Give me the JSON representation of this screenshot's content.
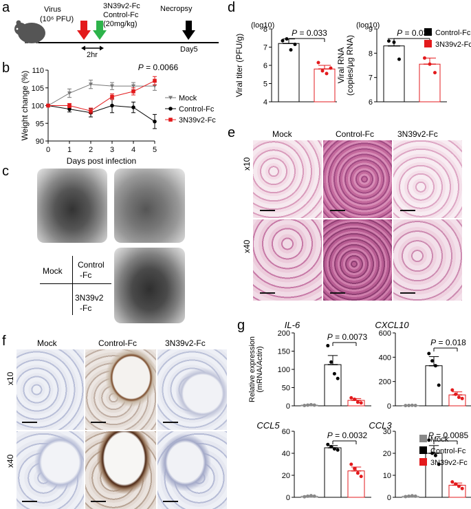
{
  "panel_labels": {
    "a": "a",
    "b": "b",
    "c": "c",
    "d": "d",
    "e": "e",
    "f": "f",
    "g": "g"
  },
  "panel_a": {
    "virus_label": "Virus",
    "virus_dose": "(10⁶ PFU)",
    "treatment_line1": "3N39v2-Fc",
    "treatment_line2": "Control-Fc",
    "treatment_line3": "(20mg/kg)",
    "interval": "2hr",
    "necropsy": "Necropsy",
    "day": "Day5",
    "colors": {
      "virus_arrow": "#e31a1c",
      "treatment_arrow": "#2db34a",
      "necropsy_arrow": "#000000"
    }
  },
  "panel_c": {
    "row_mock": "Mock",
    "col_control": "Control\n-Fc",
    "col_control_l1": "Control",
    "col_control_l2": "-Fc",
    "row_3n": "3N39v2",
    "row_3n_l2": "-Fc"
  },
  "panel_e": {
    "cols": [
      "Mock",
      "Control-Fc",
      "3N39v2-Fc"
    ],
    "rows": [
      "x10",
      "x40"
    ]
  },
  "panel_f": {
    "cols": [
      "Mock",
      "Control-Fc",
      "3N39v2-Fc"
    ],
    "rows": [
      "x10",
      "x40"
    ]
  },
  "chart_data": [
    {
      "id": "b",
      "type": "line",
      "xlabel": "Days post infection",
      "ylabel": "Weight change (%)",
      "xlim": [
        0,
        5
      ],
      "ylim": [
        90,
        110
      ],
      "xticks": [
        "0",
        "1",
        "2",
        "3",
        "4",
        "5"
      ],
      "yticks": [
        "90",
        "95",
        "100",
        "105",
        "110"
      ],
      "annotation": "P = 0.0066",
      "legend_position": "right",
      "x": [
        0,
        1,
        2,
        3,
        4,
        5
      ],
      "series": [
        {
          "name": "Mock",
          "color": "#777777",
          "marker": "triangle-down",
          "values": [
            100,
            103.5,
            106,
            105.5,
            105.5,
            105.5
          ],
          "errors": [
            0,
            1.2,
            1.2,
            1,
            1,
            1.2
          ]
        },
        {
          "name": "Control-Fc",
          "color": "#000000",
          "marker": "circle",
          "values": [
            100,
            99,
            98,
            100,
            99.5,
            95.5
          ],
          "errors": [
            0,
            0.8,
            1.2,
            2,
            1.5,
            2
          ]
        },
        {
          "name": "3N39v2-Fc",
          "color": "#e31a1c",
          "marker": "square",
          "values": [
            100,
            100,
            98.5,
            102.5,
            104,
            107
          ],
          "errors": [
            0,
            0.6,
            0.8,
            0.8,
            1,
            1.2
          ]
        }
      ]
    },
    {
      "id": "d1",
      "type": "bar",
      "ylabel": "Viral titer (PFU/g)",
      "scale_label": "(log10)",
      "ylim": [
        4,
        8
      ],
      "yticks": [
        "4",
        "5",
        "6",
        "7",
        "8"
      ],
      "annotation": "P = 0.033",
      "series": [
        {
          "name": "Control-Fc",
          "color": "#000000",
          "value": 7.2,
          "error": 0.25,
          "points": [
            7.35,
            7.45,
            6.85,
            7.15
          ]
        },
        {
          "name": "3N39v2-Fc",
          "color": "#e31a1c",
          "value": 5.8,
          "error": 0.2,
          "points": [
            6.15,
            5.7,
            5.55,
            5.85
          ]
        }
      ]
    },
    {
      "id": "d2",
      "type": "bar",
      "ylabel": "Viral RNA",
      "ylabel_line2": "(copies/μg RNA)",
      "scale_label": "(log10)",
      "ylim": [
        6,
        9
      ],
      "yticks": [
        "6",
        "7",
        "8",
        "9"
      ],
      "annotation": "P = 0.038",
      "legend": [
        "Control-Fc",
        "3N39v2-Fc"
      ],
      "series": [
        {
          "name": "Control-Fc",
          "color": "#000000",
          "value": 8.3,
          "error": 0.3,
          "points": [
            8.5,
            8.45,
            7.75
          ]
        },
        {
          "name": "3N39v2-Fc",
          "color": "#e31a1c",
          "value": 7.55,
          "error": 0.25,
          "points": [
            7.8,
            7.55,
            7.2
          ]
        }
      ]
    },
    {
      "id": "g_il6",
      "type": "bar",
      "title": "IL-6",
      "ylabel": "Relative expression",
      "ylabel_line2_pre": "(mRNA/",
      "ylabel_line2_ital": "Actin",
      "ylabel_line2_post": ")",
      "ylim": [
        0,
        200
      ],
      "yticks": [
        "0",
        "50",
        "100",
        "150",
        "200"
      ],
      "annotation": "P = 0.0073",
      "series": [
        {
          "name": "Mock",
          "color": "#888888",
          "value": 2,
          "error": 0.5,
          "points": [
            1,
            2,
            3,
            2
          ]
        },
        {
          "name": "Control-Fc",
          "color": "#000000",
          "value": 113,
          "error": 25,
          "points": [
            165,
            120,
            88,
            75
          ]
        },
        {
          "name": "3N39v2-Fc",
          "color": "#e31a1c",
          "value": 15,
          "error": 5,
          "points": [
            22,
            18,
            10,
            8
          ]
        }
      ]
    },
    {
      "id": "g_cxcl10",
      "type": "bar",
      "title": "CXCL10",
      "ylim": [
        0,
        600
      ],
      "yticks": [
        "0",
        "200",
        "400",
        "600"
      ],
      "annotation": "P = 0.018",
      "series": [
        {
          "name": "Mock",
          "color": "#888888",
          "value": 3,
          "error": 1,
          "points": [
            2,
            3,
            4,
            3
          ]
        },
        {
          "name": "Control-Fc",
          "color": "#000000",
          "value": 330,
          "error": 75,
          "points": [
            430,
            370,
            330,
            170
          ]
        },
        {
          "name": "3N39v2-Fc",
          "color": "#e31a1c",
          "value": 90,
          "error": 25,
          "points": [
            130,
            95,
            70,
            60
          ]
        }
      ]
    },
    {
      "id": "g_ccl5",
      "type": "bar",
      "title": "CCL5",
      "ylim": [
        0,
        60
      ],
      "yticks": [
        "0",
        "20",
        "40",
        "60"
      ],
      "annotation": "P = 0.0032",
      "series": [
        {
          "name": "Mock",
          "color": "#888888",
          "value": 1,
          "error": 0.4,
          "points": [
            0.5,
            1,
            1.5,
            1
          ]
        },
        {
          "name": "Control-Fc",
          "color": "#000000",
          "value": 45,
          "error": 2,
          "points": [
            48,
            46,
            44,
            43
          ]
        },
        {
          "name": "3N39v2-Fc",
          "color": "#e31a1c",
          "value": 24,
          "error": 3.5,
          "points": [
            30,
            26,
            22,
            19
          ]
        }
      ]
    },
    {
      "id": "g_ccl3",
      "type": "bar",
      "title": "CCL3",
      "ylim": [
        0,
        30
      ],
      "yticks": [
        "0",
        "10",
        "20",
        "30"
      ],
      "annotation": "P = 0.0085",
      "legend": [
        "Mock",
        "Control-Fc",
        "3N39v2-Fc"
      ],
      "series": [
        {
          "name": "Mock",
          "color": "#888888",
          "value": 0.5,
          "error": 0.2,
          "points": [
            0.3,
            0.5,
            0.7,
            0.5
          ]
        },
        {
          "name": "Control-Fc",
          "color": "#000000",
          "value": 20,
          "error": 3.5,
          "points": [
            26,
            20,
            19,
            15
          ]
        },
        {
          "name": "3N39v2-Fc",
          "color": "#e31a1c",
          "value": 5.5,
          "error": 1,
          "points": [
            7,
            6,
            5,
            4
          ]
        }
      ]
    }
  ]
}
